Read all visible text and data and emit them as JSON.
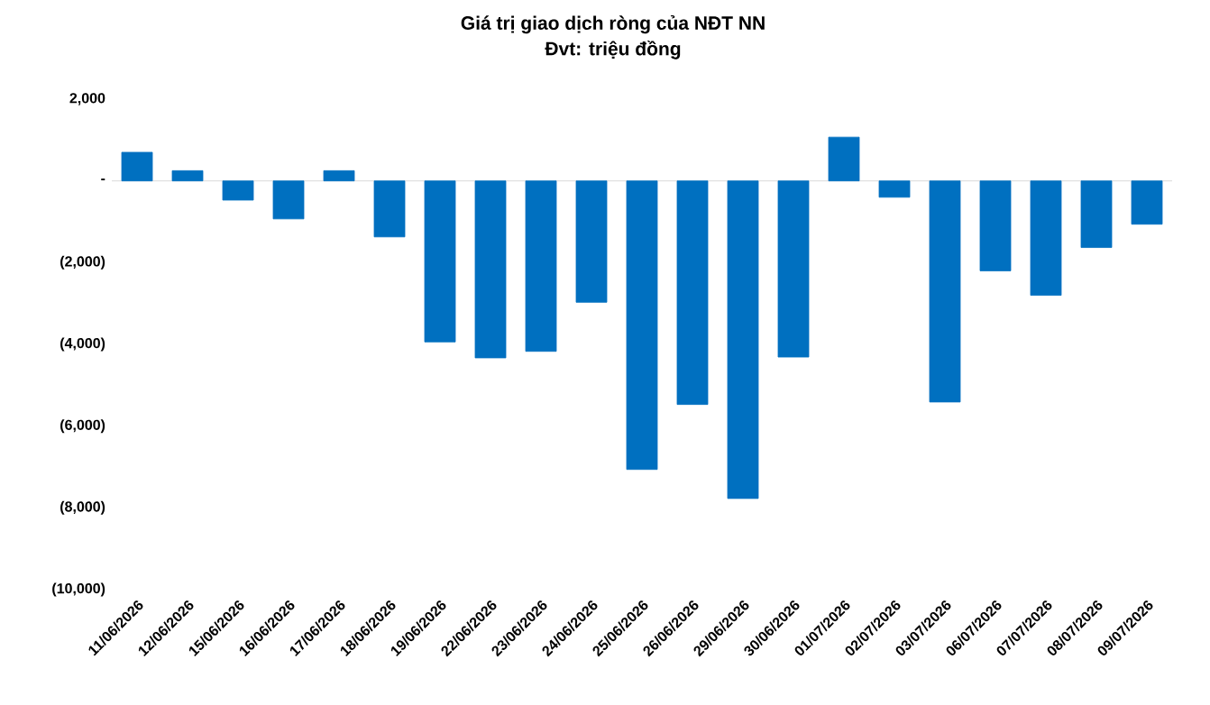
{
  "chart_data": {
    "type": "bar",
    "title": "Giá trị giao dịch ròng của NĐT NN",
    "subtitle": "Đvt: triệu đồng",
    "categories": [
      "11/06/2026",
      "12/06/2026",
      "15/06/2026",
      "16/06/2026",
      "17/06/2026",
      "18/06/2026",
      "19/06/2026",
      "22/06/2026",
      "23/06/2026",
      "24/06/2026",
      "25/06/2026",
      "26/06/2026",
      "29/06/2026",
      "30/06/2026",
      "01/07/2026",
      "02/07/2026",
      "03/07/2026",
      "06/07/2026",
      "07/07/2026",
      "08/07/2026",
      "09/07/2026"
    ],
    "values": [
      700,
      250,
      -470,
      -930,
      250,
      -1370,
      -3940,
      -4330,
      -4170,
      -2970,
      -7060,
      -5470,
      -7770,
      -4310,
      1070,
      -400,
      -5410,
      -2200,
      -2800,
      -1630,
      -1060
    ],
    "color": "#0070c0",
    "ylim": [
      -10000,
      2000
    ],
    "yticks": [
      {
        "value": 2000,
        "label": "2,000"
      },
      {
        "value": 0,
        "label": "-"
      },
      {
        "value": -2000,
        "label": "(2,000)"
      },
      {
        "value": -4000,
        "label": "(4,000)"
      },
      {
        "value": -6000,
        "label": "(6,000)"
      },
      {
        "value": -8000,
        "label": "(8,000)"
      },
      {
        "value": -10000,
        "label": "(10,000)"
      }
    ]
  }
}
